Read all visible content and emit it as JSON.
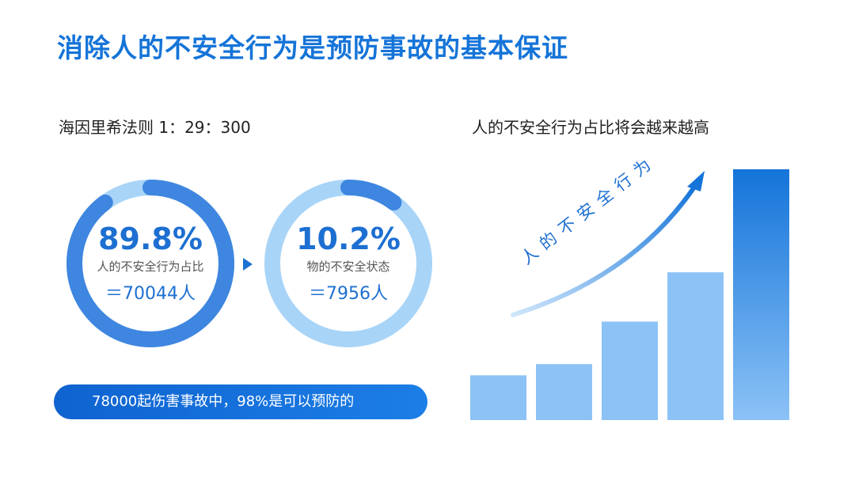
{
  "title": "消除人的不安全行为是预防事故的基本保证",
  "left": {
    "subtitle": "海因里希法则 1：29：300",
    "ring1": {
      "percent": "89.8%",
      "caption": "人的不安全行为占比",
      "count": "＝70044人",
      "fraction": 0.898
    },
    "ring2": {
      "percent": "10.2%",
      "caption": "物的不安全状态",
      "count": "＝7956人",
      "fraction": 0.102
    },
    "banner": "78000起伤害事故中，98%是可以预防的"
  },
  "right": {
    "subtitle": "人的不安全行为占比将会越来越高",
    "curve_label": "人的不安全行为",
    "bar_levels": [
      1,
      1.25,
      2.2,
      3.3,
      5.6
    ]
  },
  "colors": {
    "primary": "#1d6fd1",
    "ring_track": "#a8d4f7",
    "ring_arc": "#3e86e0",
    "bar_light": "#8cc2f6",
    "bar_dark": "#1474d9"
  }
}
